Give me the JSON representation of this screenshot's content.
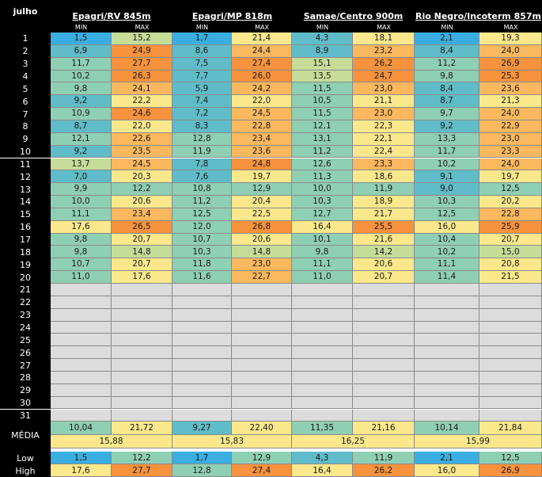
{
  "corner_label": "julho",
  "stations": [
    {
      "name": "Epagri/RV 845m"
    },
    {
      "name": "Epagri/MP 818m"
    },
    {
      "name": "Samae/Centro 900m"
    },
    {
      "name": "Rio Negro/Incoterm 857m"
    }
  ],
  "sub_headers": {
    "min": "MIN",
    "max": "MAX"
  },
  "rows": [
    {
      "day": "1",
      "v": [
        "1,5",
        "15,2",
        "1,7",
        "21,4",
        "4,3",
        "18,1",
        "2,1",
        "19,3"
      ]
    },
    {
      "day": "2",
      "v": [
        "6,9",
        "24,9",
        "8,6",
        "24,4",
        "8,9",
        "23,2",
        "8,4",
        "24,0"
      ]
    },
    {
      "day": "3",
      "v": [
        "11,7",
        "27,7",
        "7,5",
        "27,4",
        "15,1",
        "26,2",
        "11,2",
        "26,9"
      ]
    },
    {
      "day": "4",
      "v": [
        "10,2",
        "26,3",
        "7,7",
        "26,0",
        "13,5",
        "24,7",
        "9,8",
        "25,3"
      ]
    },
    {
      "day": "5",
      "v": [
        "9,8",
        "24,1",
        "5,9",
        "24,2",
        "11,5",
        "23,0",
        "8,4",
        "23,6"
      ]
    },
    {
      "day": "6",
      "v": [
        "9,2",
        "22,2",
        "7,4",
        "22,0",
        "10,5",
        "21,1",
        "8,7",
        "21,3"
      ]
    },
    {
      "day": "7",
      "v": [
        "10,9",
        "24,6",
        "7,2",
        "24,5",
        "11,5",
        "23,0",
        "9,7",
        "24,0"
      ]
    },
    {
      "day": "8",
      "v": [
        "8,7",
        "22,0",
        "8,3",
        "22,8",
        "12,1",
        "22,3",
        "9,2",
        "22,9"
      ]
    },
    {
      "day": "9",
      "v": [
        "12,1",
        "22,6",
        "12,8",
        "23,4",
        "13,1",
        "22,1",
        "13,3",
        "23,0"
      ]
    },
    {
      "day": "10",
      "v": [
        "9,2",
        "23,5",
        "11,9",
        "23,6",
        "11,2",
        "22,4",
        "11,7",
        "23,3"
      ]
    },
    {
      "day": "11",
      "v": [
        "13,7",
        "24,5",
        "7,8",
        "24,8",
        "12,6",
        "23,3",
        "10,2",
        "24,0"
      ]
    },
    {
      "day": "12",
      "v": [
        "7,0",
        "20,3",
        "7,6",
        "19,7",
        "11,3",
        "18,6",
        "9,1",
        "19,7"
      ]
    },
    {
      "day": "13",
      "v": [
        "9,9",
        "12,2",
        "10,8",
        "12,9",
        "10,0",
        "11,9",
        "9,0",
        "12,5"
      ]
    },
    {
      "day": "14",
      "v": [
        "10,0",
        "20,6",
        "11,2",
        "20,4",
        "10,3",
        "18,9",
        "10,3",
        "20,2"
      ]
    },
    {
      "day": "15",
      "v": [
        "11,1",
        "23,4",
        "12,5",
        "22,5",
        "12,7",
        "21,7",
        "12,5",
        "22,8"
      ]
    },
    {
      "day": "16",
      "v": [
        "17,6",
        "26,5",
        "12,0",
        "26,8",
        "16,4",
        "25,5",
        "16,0",
        "25,9"
      ]
    },
    {
      "day": "17",
      "v": [
        "9,8",
        "20,7",
        "10,7",
        "20,6",
        "10,1",
        "21,6",
        "10,4",
        "20,7"
      ]
    },
    {
      "day": "18",
      "v": [
        "9,8",
        "14,8",
        "10,3",
        "14,8",
        "9,8",
        "14,2",
        "10,2",
        "15,0"
      ]
    },
    {
      "day": "19",
      "v": [
        "10,7",
        "20,7",
        "11,8",
        "23,0",
        "11,1",
        "20,6",
        "11,1",
        "20,8"
      ]
    },
    {
      "day": "20",
      "v": [
        "11,0",
        "17,6",
        "11,6",
        "22,7",
        "11,0",
        "20,7",
        "11,4",
        "21,5"
      ]
    },
    {
      "day": "21",
      "v": []
    },
    {
      "day": "22",
      "v": []
    },
    {
      "day": "23",
      "v": []
    },
    {
      "day": "24",
      "v": []
    },
    {
      "day": "25",
      "v": []
    },
    {
      "day": "26",
      "v": []
    },
    {
      "day": "27",
      "v": []
    },
    {
      "day": "28",
      "v": []
    },
    {
      "day": "29",
      "v": []
    },
    {
      "day": "30",
      "v": []
    },
    {
      "day": "31",
      "v": []
    }
  ],
  "media": {
    "label": "MÉDIA",
    "values": [
      "10,04",
      "21,72",
      "9,27",
      "22,40",
      "11,35",
      "21,16",
      "10,14",
      "21,84"
    ],
    "averages": [
      "15,88",
      "15,83",
      "16,25",
      "15,99"
    ]
  },
  "low": {
    "label": "Low",
    "values": [
      "1,5",
      "12,2",
      "1,7",
      "12,9",
      "4,3",
      "11,9",
      "2,1",
      "12,5"
    ]
  },
  "high": {
    "label": "High",
    "values": [
      "17,6",
      "27,7",
      "12,8",
      "27,4",
      "16,4",
      "26,2",
      "16,0",
      "26,9"
    ]
  },
  "colors": {
    "header_bg": "#000000",
    "header_text": "#ffffff",
    "blank_cell": "#dcdcdc",
    "cold": "#3aaee0",
    "cool": "#5fbcc8",
    "mild": "#8fcfb4",
    "pale": "#c6dd9a",
    "warm": "#fbe88c",
    "hot": "#fbb85e",
    "hottest": "#f7923e"
  }
}
